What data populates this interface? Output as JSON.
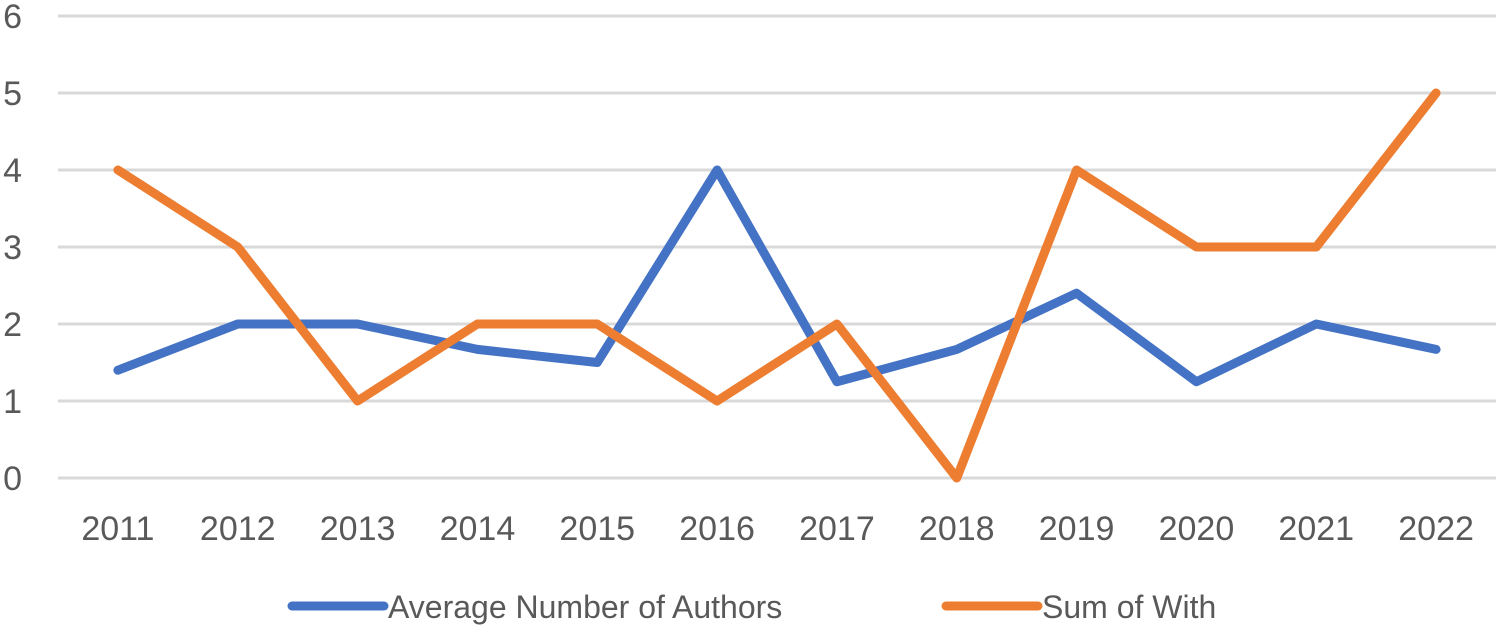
{
  "chart_data": {
    "type": "line",
    "title": "",
    "xlabel": "",
    "ylabel": "",
    "categories": [
      "2011",
      "2012",
      "2013",
      "2014",
      "2015",
      "2016",
      "2017",
      "2018",
      "2019",
      "2020",
      "2021",
      "2022"
    ],
    "ylim": [
      0,
      6
    ],
    "yticks": [
      "0",
      "1",
      "2",
      "3",
      "4",
      "5",
      "6"
    ],
    "grid": true,
    "legend_position": "bottom",
    "series": [
      {
        "name": "Average Number of Authors",
        "color": "#4472c4",
        "values": [
          1.4,
          2,
          2,
          1.67,
          1.5,
          4,
          1.25,
          1.67,
          2.4,
          1.25,
          2,
          1.67
        ]
      },
      {
        "name": "Sum of With",
        "color": "#ed7d31",
        "values": [
          4,
          3,
          1,
          2,
          2,
          1,
          2,
          0,
          4,
          3,
          3,
          5
        ]
      }
    ]
  }
}
